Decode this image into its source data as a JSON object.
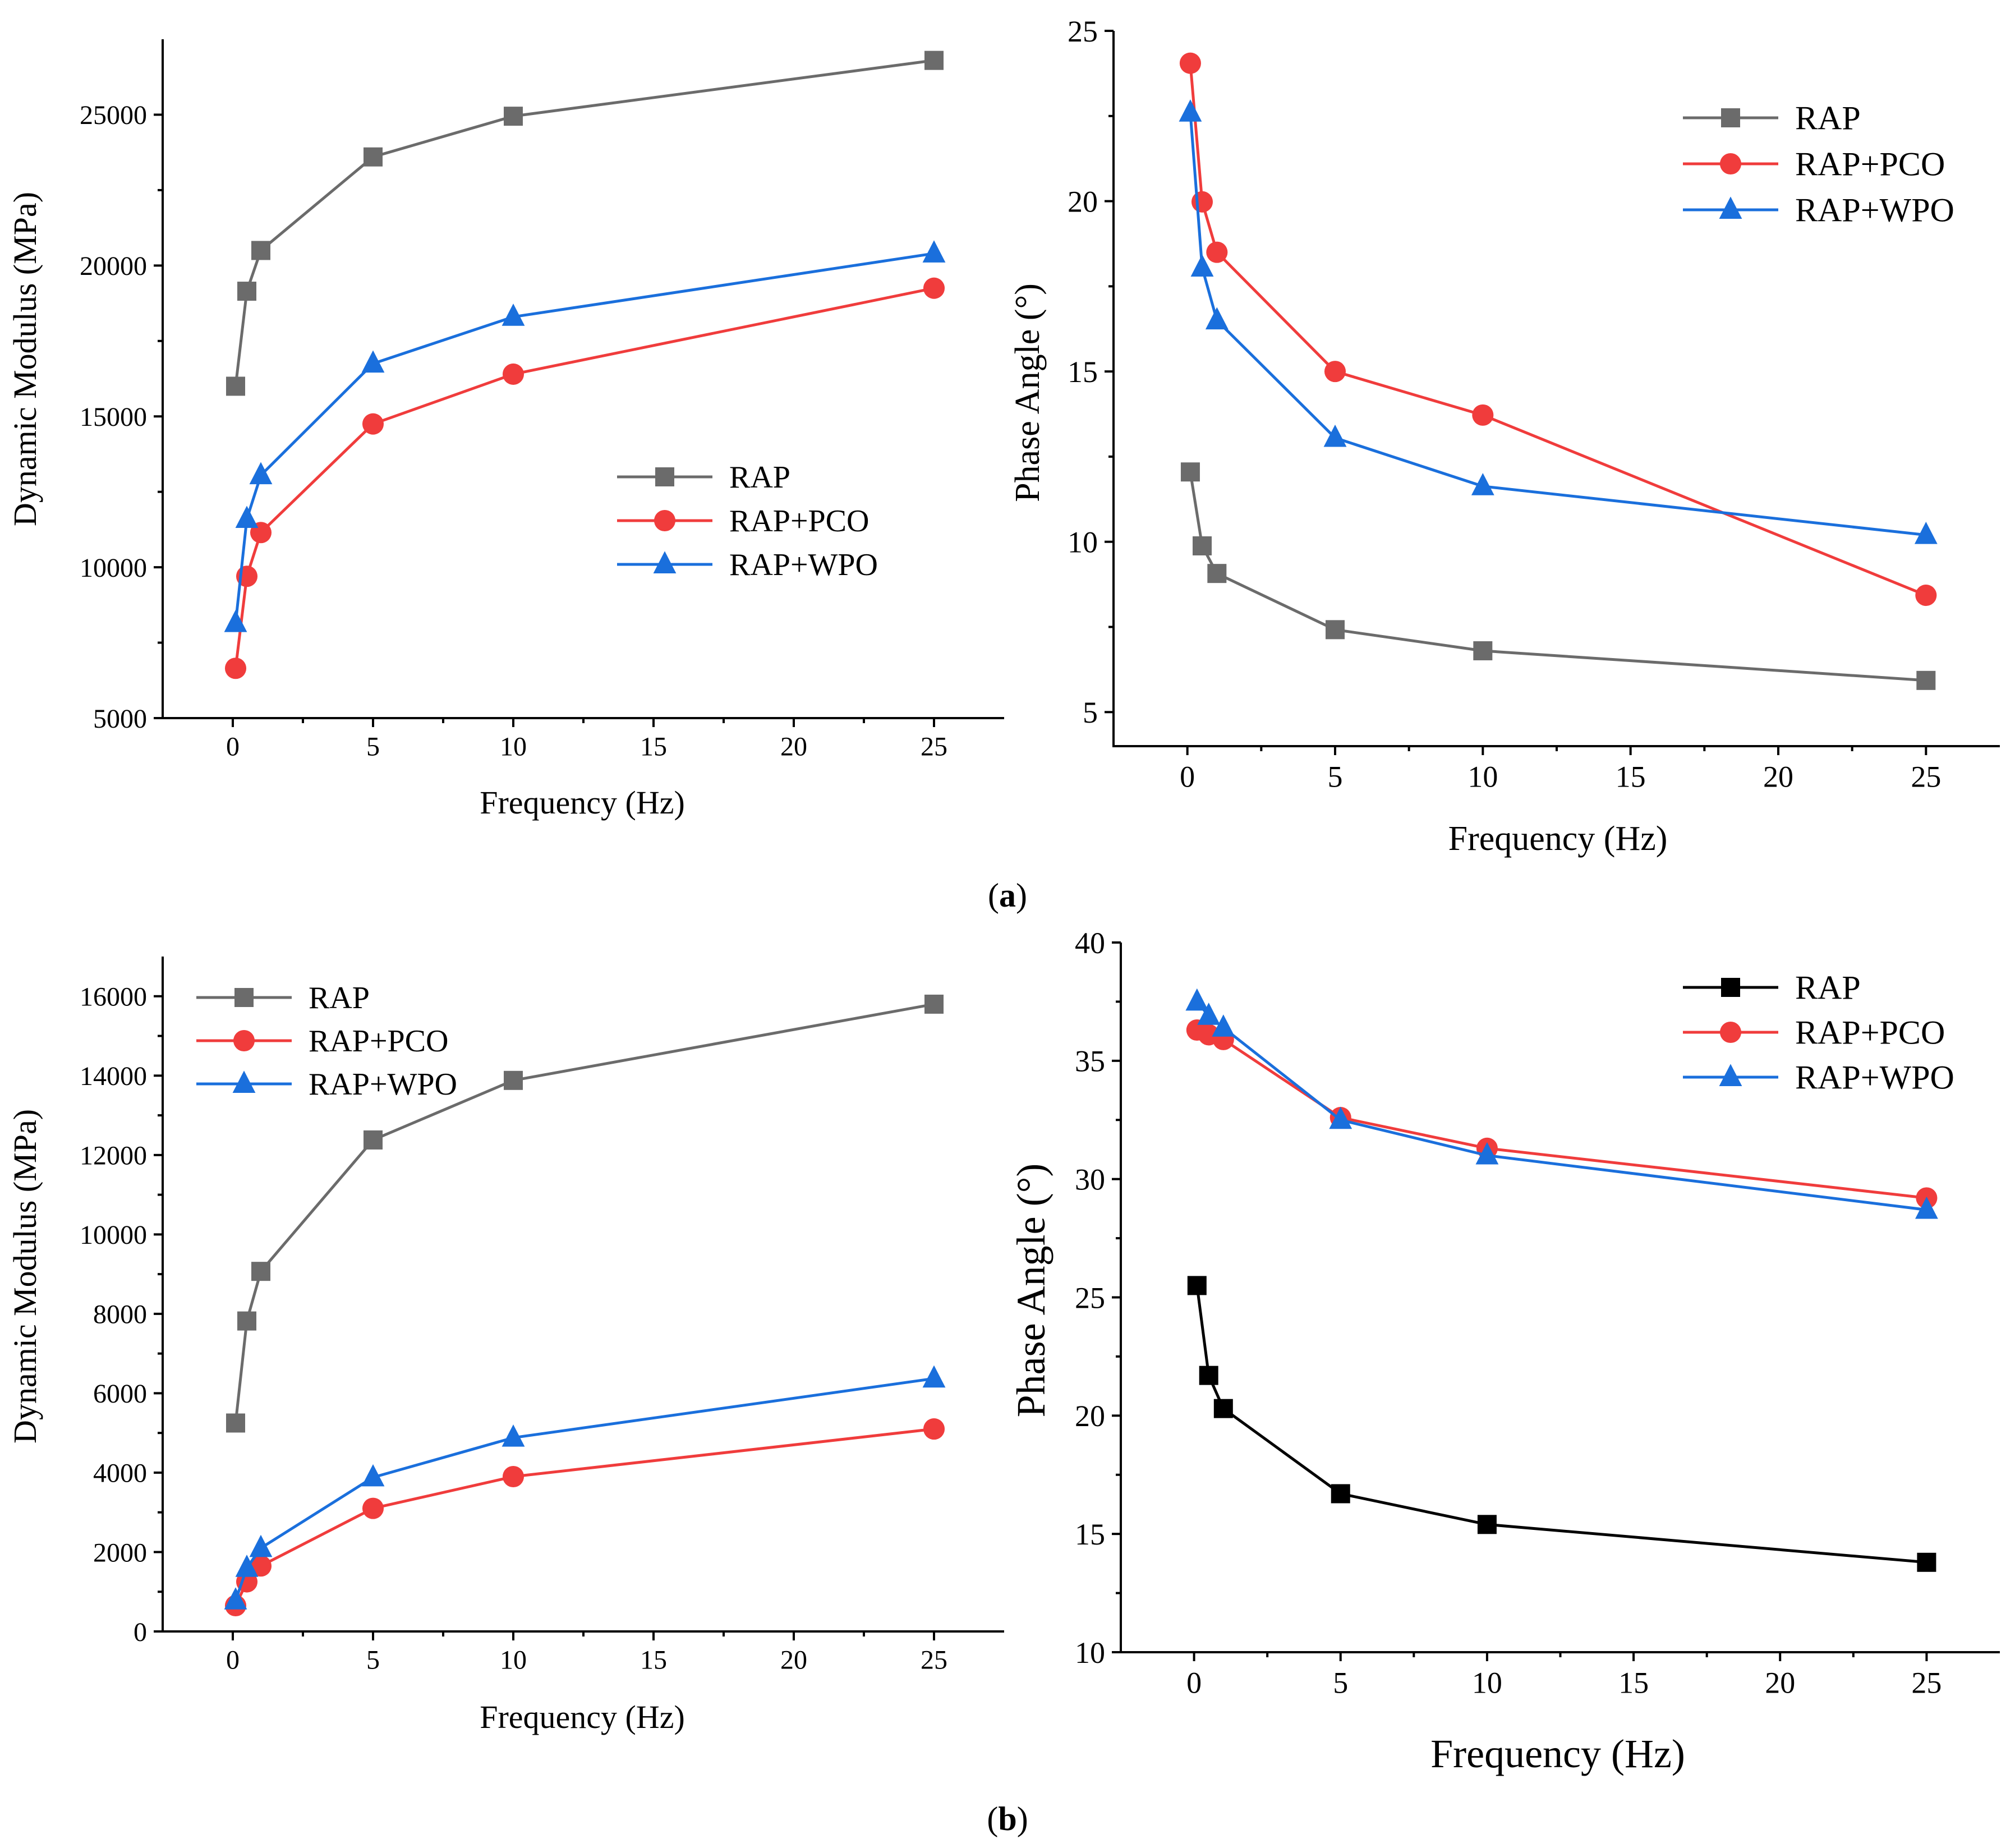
{
  "figure": {
    "panel_labels": [
      {
        "open": "(",
        "letter": "a",
        "close": ")"
      },
      {
        "open": "(",
        "letter": "b",
        "close": ")"
      }
    ]
  },
  "colors": {
    "RAP": "#6b6b6b",
    "RAP_black": "#000000",
    "RAP+PCO": "#f03c3c",
    "RAP+WPO": "#1a6fdc"
  },
  "chart_data": [
    {
      "id": "a-modulus",
      "type": "line",
      "title": "",
      "xlabel": "Frequency (Hz)",
      "ylabel": "Dynamic Modulus (MPa)",
      "xlim": [
        -2.5,
        27.5
      ],
      "ylim": [
        5000,
        27500
      ],
      "xticks": [
        0,
        5,
        10,
        15,
        20,
        25
      ],
      "yticks": [
        5000,
        10000,
        15000,
        20000,
        25000
      ],
      "legend_position": "center-right",
      "x": [
        0.1,
        0.5,
        1,
        5,
        10,
        25
      ],
      "series": [
        {
          "name": "RAP",
          "marker": "square",
          "color_key": "RAP",
          "values": [
            16000,
            19150,
            20500,
            23600,
            24950,
            26800
          ]
        },
        {
          "name": "RAP+PCO",
          "marker": "circle",
          "color_key": "RAP+PCO",
          "values": [
            6650,
            9700,
            11150,
            14750,
            16400,
            19250
          ]
        },
        {
          "name": "RAP+WPO",
          "marker": "triangle",
          "color_key": "RAP+WPO",
          "values": [
            8150,
            11600,
            13050,
            16750,
            18300,
            20400
          ]
        }
      ]
    },
    {
      "id": "a-phase",
      "type": "line",
      "title": "",
      "xlabel": "Frequency (Hz)",
      "ylabel": "Phase Angle (°)",
      "xlim": [
        -2.5,
        27.5
      ],
      "ylim": [
        4,
        25
      ],
      "xticks": [
        0,
        5,
        10,
        15,
        20,
        25
      ],
      "yticks": [
        5,
        10,
        15,
        20,
        25
      ],
      "legend_position": "top-right",
      "x": [
        0.1,
        0.5,
        1,
        5,
        10,
        25
      ],
      "series": [
        {
          "name": "RAP",
          "marker": "square",
          "color_key": "RAP",
          "values": [
            12.05,
            9.88,
            9.07,
            7.42,
            6.8,
            5.93
          ]
        },
        {
          "name": "RAP+PCO",
          "marker": "circle",
          "color_key": "RAP+PCO",
          "values": [
            24.05,
            19.98,
            18.5,
            15.0,
            13.72,
            8.43
          ]
        },
        {
          "name": "RAP+WPO",
          "marker": "triangle",
          "color_key": "RAP+WPO",
          "values": [
            22.6,
            18.05,
            16.5,
            13.05,
            11.63,
            10.2
          ]
        }
      ]
    },
    {
      "id": "b-modulus",
      "type": "line",
      "title": "",
      "xlabel": "Frequency (Hz)",
      "ylabel": "Dynamic Modulus (MPa)",
      "xlim": [
        -2.5,
        27.5
      ],
      "ylim": [
        0,
        17000
      ],
      "xticks": [
        0,
        5,
        10,
        15,
        20,
        25
      ],
      "yticks": [
        0,
        2000,
        4000,
        6000,
        8000,
        10000,
        12000,
        14000,
        16000
      ],
      "legend_position": "top-left",
      "x": [
        0.1,
        0.5,
        1,
        5,
        10,
        25
      ],
      "series": [
        {
          "name": "RAP",
          "marker": "square",
          "color_key": "RAP",
          "values": [
            5250,
            7820,
            9070,
            12380,
            13880,
            15800
          ]
        },
        {
          "name": "RAP+PCO",
          "marker": "circle",
          "color_key": "RAP+PCO",
          "values": [
            650,
            1250,
            1650,
            3100,
            3900,
            5100
          ]
        },
        {
          "name": "RAP+WPO",
          "marker": "triangle",
          "color_key": "RAP+WPO",
          "values": [
            780,
            1600,
            2100,
            3880,
            4880,
            6370
          ]
        }
      ]
    },
    {
      "id": "b-phase",
      "type": "line",
      "title": "",
      "xlabel": "Frequency (Hz)",
      "ylabel": "Phase Angle (°)",
      "xlim": [
        -2.5,
        27.5
      ],
      "ylim": [
        10,
        40
      ],
      "xticks": [
        0,
        5,
        10,
        15,
        20,
        25
      ],
      "yticks": [
        10,
        15,
        20,
        25,
        30,
        35,
        40
      ],
      "legend_position": "top-right",
      "x": [
        0.1,
        0.5,
        1,
        5,
        10,
        25
      ],
      "series": [
        {
          "name": "RAP",
          "marker": "square",
          "color_key": "RAP_black",
          "values": [
            25.5,
            21.7,
            20.3,
            16.7,
            15.4,
            13.8
          ]
        },
        {
          "name": "RAP+PCO",
          "marker": "circle",
          "color_key": "RAP+PCO",
          "values": [
            36.3,
            36.1,
            35.9,
            32.6,
            31.3,
            29.2
          ]
        },
        {
          "name": "RAP+WPO",
          "marker": "triangle",
          "color_key": "RAP+WPO",
          "values": [
            37.5,
            36.9,
            36.4,
            32.5,
            31.0,
            28.7
          ]
        }
      ]
    }
  ]
}
